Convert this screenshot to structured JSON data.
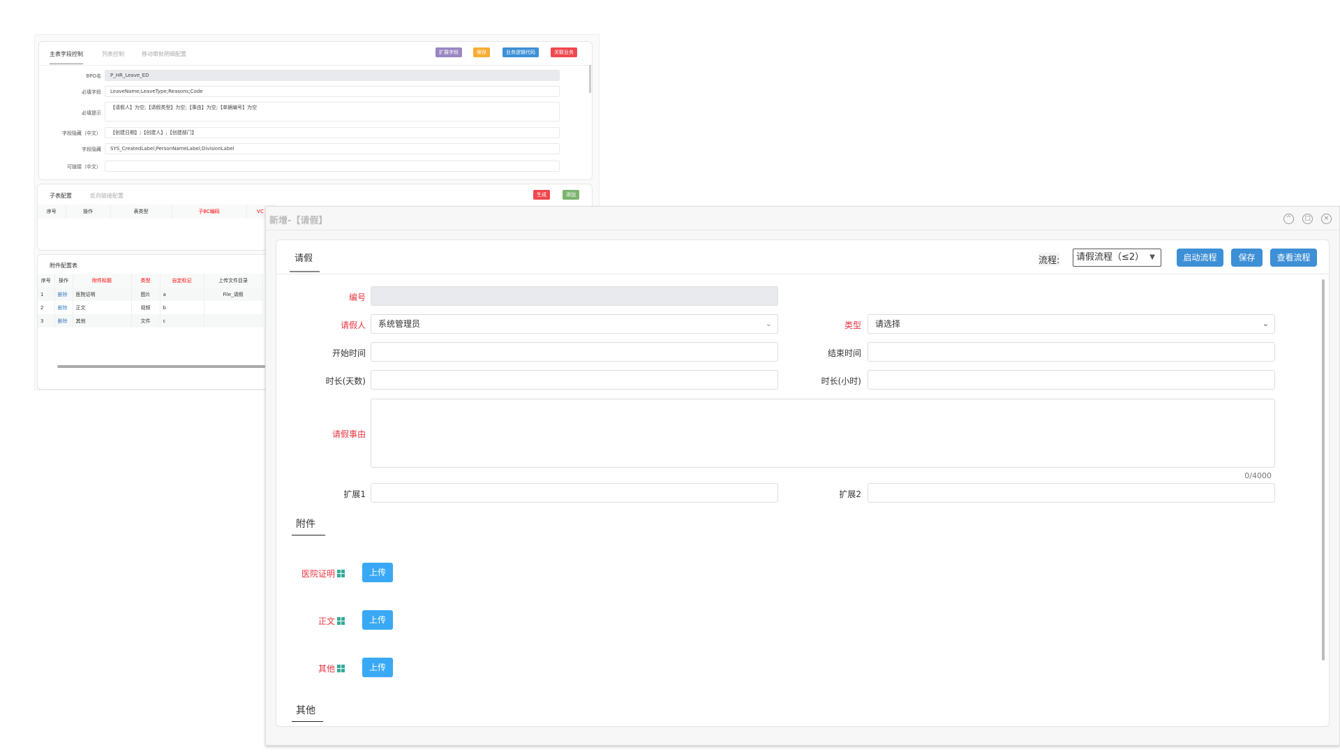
{
  "bg": {
    "tabs": [
      "主表字段控制",
      "列表控制",
      "移动审批明细配置"
    ],
    "buttons": [
      {
        "label": "扩展字段",
        "color": "#9a86c2"
      },
      {
        "label": "保存",
        "color": "#f7ad33"
      },
      {
        "label": "业务逻辑代码",
        "color": "#3d8fd6"
      },
      {
        "label": "关联业务",
        "color": "#f0474f"
      }
    ],
    "fields": [
      {
        "label": "BPO名",
        "value": "P_HR_Leave_ED"
      },
      {
        "label": "必填字段",
        "value": "LeaveName;LeaveType;Reasons;Code"
      },
      {
        "label": "必填提示",
        "value": "【请假人】为空;【请假类型】为空;【事由】为空;【单据编号】为空"
      },
      {
        "label": "字段隐藏（中文）",
        "value": "【创建日期】;【创建人】;【创建部门】"
      },
      {
        "label": "字段隐藏",
        "value": "SYS_CreatedLabel;PersonNameLabel;DivisionLabel"
      },
      {
        "label": "可链接（中文）",
        "value": ""
      }
    ],
    "sub": {
      "tabs": [
        "子表配置",
        "反向链接配置"
      ],
      "buttons": [
        {
          "label": "生成",
          "color": "#f0474f"
        },
        {
          "label": "添加",
          "color": "#7cb46f"
        }
      ],
      "headers": [
        "序号",
        "操作",
        "表类型",
        "子BC编码",
        "VC"
      ]
    },
    "attach": {
      "title": "附件配置表",
      "headers": [
        "序号",
        "操作",
        "附件标题",
        "类型",
        "自定标记",
        "上传文件目录"
      ],
      "rows": [
        [
          "1",
          "删除",
          "医院证明",
          "图片",
          "a",
          "File_请假"
        ],
        [
          "2",
          "删除",
          "正文",
          "视频",
          "b",
          ""
        ],
        [
          "3",
          "删除",
          "其他",
          "文件",
          "c",
          ""
        ]
      ]
    }
  },
  "dialog": {
    "title": "新增-【请假】",
    "tab": "请假",
    "flow_label": "流程:",
    "flow_value": "请假流程（≤2）",
    "buttons": [
      "启动流程",
      "保存",
      "查看流程"
    ],
    "fields": {
      "code": {
        "label": "编号",
        "value": ""
      },
      "applicant": {
        "label": "请假人",
        "value": "系统管理员"
      },
      "type": {
        "label": "类型",
        "value": "请选择"
      },
      "start": {
        "label": "开始时间",
        "value": ""
      },
      "end": {
        "label": "结束时间",
        "value": ""
      },
      "days": {
        "label": "时长(天数)",
        "value": ""
      },
      "hours": {
        "label": "时长(小时)",
        "value": ""
      },
      "reason": {
        "label": "请假事由",
        "value": "",
        "counter": "0/4000"
      },
      "ext1": {
        "label": "扩展1",
        "value": ""
      },
      "ext2": {
        "label": "扩展2",
        "value": ""
      }
    },
    "attach_title": "附件",
    "attachments": [
      {
        "label": "医院证明",
        "button": "上传"
      },
      {
        "label": "正文",
        "button": "上传"
      },
      {
        "label": "其他",
        "button": "上传"
      }
    ],
    "other_title": "其他"
  }
}
